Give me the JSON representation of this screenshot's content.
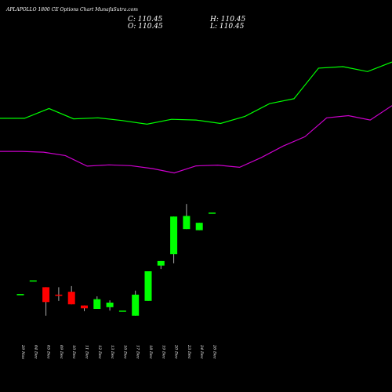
{
  "header": {
    "title": "APLAPOLLO 1800 CE Options Chart MunafaSutra.com",
    "close_label": "C: 110.45",
    "open_label": "O: 110.45",
    "high_label": "H: 110.45",
    "low_label": "L: 110.45"
  },
  "colors": {
    "background": "#000000",
    "up": "#00ff00",
    "down": "#ff0000",
    "upper_band": "#00ff00",
    "lower_band": "#cc00cc",
    "text": "#ffffff"
  },
  "chart_data": {
    "type": "candlestick",
    "title": "APLAPOLLO 1800 CE Options Chart MunafaSutra.com",
    "x": [
      "29 Nov",
      "04 Dec",
      "05 Dec",
      "09 Dec",
      "10 Dec",
      "11 Dec",
      "12 Dec",
      "13 Dec",
      "16 Dec",
      "17 Dec",
      "18 Dec",
      "19 Dec",
      "20 Dec",
      "23 Dec",
      "24 Dec",
      "26 Dec"
    ],
    "candles": [
      {
        "open": 39.0,
        "high": 39.0,
        "low": 39.0,
        "close": 39.0
      },
      {
        "open": 51.0,
        "high": 51.0,
        "low": 51.0,
        "close": 51.0
      },
      {
        "open": 45.0,
        "high": 45.0,
        "low": 20.0,
        "close": 32.0
      },
      {
        "open": 38.5,
        "high": 45.0,
        "low": 33.0,
        "close": 37.5
      },
      {
        "open": 41.0,
        "high": 46.0,
        "low": 30.0,
        "close": 30.0
      },
      {
        "open": 29.0,
        "high": 29.0,
        "low": 24.0,
        "close": 26.5
      },
      {
        "open": 26.0,
        "high": 37.0,
        "low": 26.0,
        "close": 34.5
      },
      {
        "open": 27.5,
        "high": 33.5,
        "low": 24.5,
        "close": 31.5
      },
      {
        "open": 24.5,
        "high": 24.5,
        "low": 24.5,
        "close": 24.5
      },
      {
        "open": 20.0,
        "high": 42.0,
        "low": 20.0,
        "close": 38.5
      },
      {
        "open": 33.0,
        "high": 59.0,
        "low": 33.0,
        "close": 59.0
      },
      {
        "open": 64.0,
        "high": 68.0,
        "low": 61.0,
        "close": 68.0
      },
      {
        "open": 74.0,
        "high": 107.0,
        "low": 66.0,
        "close": 107.0
      },
      {
        "open": 96.0,
        "high": 118.0,
        "low": 96.0,
        "close": 107.5
      },
      {
        "open": 95.0,
        "high": 101.5,
        "low": 95.0,
        "close": 101.5
      },
      {
        "open": 110.45,
        "high": 110.45,
        "low": 110.45,
        "close": 110.45
      }
    ],
    "upper_band": [
      285,
      285,
      325,
      283,
      287,
      276,
      261,
      281,
      278,
      264,
      293,
      345,
      365,
      490,
      496,
      476,
      515
    ],
    "lower_band": [
      150,
      150,
      147,
      133,
      90,
      95,
      92,
      80,
      62,
      91,
      94,
      85,
      125,
      172,
      210,
      287,
      296,
      278,
      337
    ],
    "ylim": [
      0,
      165
    ]
  }
}
